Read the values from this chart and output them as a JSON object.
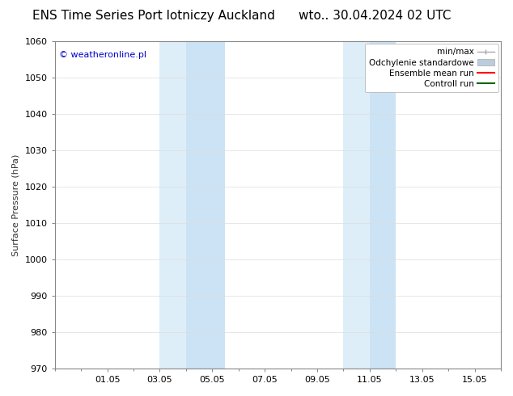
{
  "title_left": "ENS Time Series Port lotniczy Auckland",
  "title_right": "wto.. 30.04.2024 02 UTC",
  "ylabel": "Surface Pressure (hPa)",
  "ylim": [
    970,
    1060
  ],
  "yticks": [
    970,
    980,
    990,
    1000,
    1010,
    1020,
    1030,
    1040,
    1050,
    1060
  ],
  "xlim": [
    0,
    17
  ],
  "xtick_labels": [
    "01.05",
    "03.05",
    "05.05",
    "07.05",
    "09.05",
    "11.05",
    "13.05",
    "15.05"
  ],
  "xtick_positions": [
    2,
    4,
    6,
    8,
    10,
    12,
    14,
    16
  ],
  "shaded_regions": [
    {
      "xmin": 4.0,
      "xmax": 5.0,
      "color": "#ddeef9"
    },
    {
      "xmin": 5.0,
      "xmax": 6.5,
      "color": "#cce3f5"
    },
    {
      "xmin": 11.0,
      "xmax": 12.0,
      "color": "#ddeef9"
    },
    {
      "xmin": 12.0,
      "xmax": 13.0,
      "color": "#cce3f5"
    }
  ],
  "watermark_text": "© weatheronline.pl",
  "watermark_color": "#0000cc",
  "background_color": "#ffffff",
  "plot_bg_color": "#ffffff",
  "border_color": "#888888",
  "legend_items": [
    {
      "label": "min/max",
      "color": "#aaaaaa",
      "lw": 1.0
    },
    {
      "label": "Odchylenie standardowe",
      "color": "#bbccdd",
      "lw": 6
    },
    {
      "label": "Ensemble mean run",
      "color": "#ff0000",
      "lw": 1.5
    },
    {
      "label": "Controll run",
      "color": "#006600",
      "lw": 1.5
    }
  ],
  "title_fontsize": 11,
  "watermark_fontsize": 8,
  "axis_label_fontsize": 8,
  "tick_fontsize": 8,
  "legend_fontsize": 7.5
}
